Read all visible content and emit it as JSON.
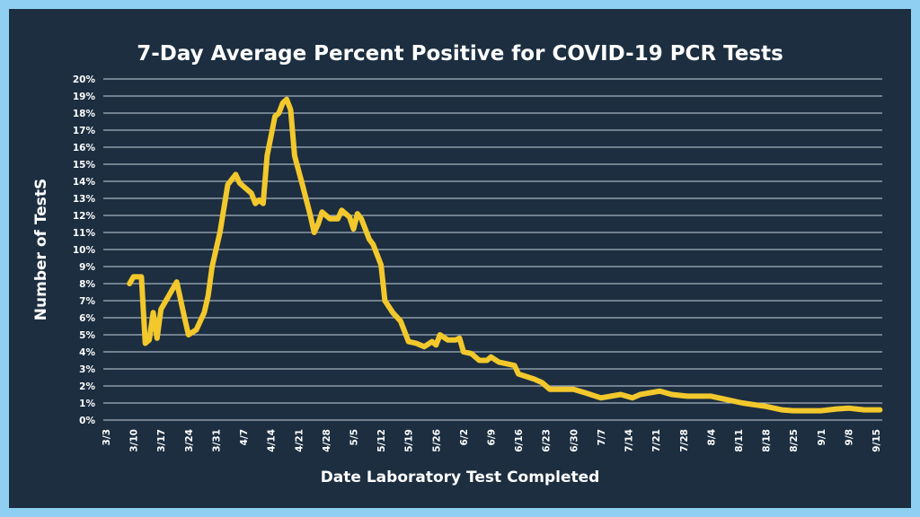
{
  "colors": {
    "frame": "#8fd0f2",
    "background": "#1c2e40",
    "line": "#f2c82c",
    "grid": "#c8d2dc"
  },
  "chart_data": {
    "type": "line",
    "title": "7-Day Average Percent Positive for COVID-19 PCR Tests",
    "xlabel": "Date Laboratory Test Completed",
    "ylabel": "Number of TestS",
    "ylim": [
      0,
      20
    ],
    "y_ticks": [
      "0%",
      "1%",
      "2%",
      "3%",
      "4%",
      "5%",
      "6%",
      "7%",
      "8%",
      "9%",
      "10%",
      "11%",
      "12%",
      "13%",
      "14%",
      "15%",
      "16%",
      "17%",
      "18%",
      "19%",
      "20%"
    ],
    "x_ticks": [
      "3/3",
      "3/10",
      "3/17",
      "3/24",
      "3/31",
      "4/7",
      "4/14",
      "4/21",
      "4/28",
      "5/5",
      "5/12",
      "5/19",
      "5/26",
      "6/2",
      "6/9",
      "6/16",
      "6/23",
      "6/30",
      "7/7",
      "7/14",
      "7/21",
      "7/28",
      "8/4",
      "8/11",
      "8/18",
      "8/25",
      "9/1",
      "9/8",
      "9/15"
    ],
    "grid": true,
    "legend": "none",
    "series": [
      {
        "x": [
          "3/9",
          "3/10",
          "3/12",
          "3/13",
          "3/14",
          "3/15",
          "3/16",
          "3/17",
          "3/19",
          "3/21",
          "3/23",
          "3/24",
          "3/26",
          "3/28",
          "3/29",
          "3/30",
          "4/1",
          "4/3",
          "4/5",
          "4/6",
          "4/8",
          "4/9",
          "4/10",
          "4/11",
          "4/12",
          "4/13",
          "4/15",
          "4/16",
          "4/17",
          "4/18",
          "4/19",
          "4/20",
          "4/22",
          "4/24",
          "4/25",
          "4/26",
          "4/27",
          "4/29",
          "5/1",
          "5/2",
          "5/4",
          "5/5",
          "5/6",
          "5/7",
          "5/9",
          "5/10",
          "5/12",
          "5/13",
          "5/15",
          "5/17",
          "5/19",
          "5/21",
          "5/23",
          "5/25",
          "5/26",
          "5/27",
          "5/29",
          "5/31",
          "6/1",
          "6/2",
          "6/4",
          "6/6",
          "6/8",
          "6/9",
          "6/11",
          "6/13",
          "6/15",
          "6/16",
          "6/20",
          "6/22",
          "6/24",
          "6/30",
          "7/3",
          "7/7",
          "7/12",
          "7/15",
          "7/17",
          "7/22",
          "7/25",
          "7/29",
          "8/4",
          "8/8",
          "8/12",
          "8/18",
          "8/22",
          "8/25",
          "9/1",
          "9/5",
          "9/8",
          "9/12",
          "9/16"
        ],
        "values": [
          8.0,
          8.4,
          8.4,
          4.5,
          4.7,
          6.3,
          4.8,
          6.5,
          7.3,
          8.1,
          6.0,
          5.0,
          5.3,
          6.3,
          7.3,
          9.0,
          11.0,
          13.8,
          14.4,
          13.9,
          13.5,
          13.3,
          12.7,
          12.9,
          12.7,
          15.5,
          17.8,
          18.0,
          18.6,
          18.8,
          18.2,
          15.5,
          13.8,
          12.0,
          11.0,
          11.5,
          12.2,
          11.8,
          11.8,
          12.3,
          11.9,
          11.2,
          12.1,
          11.8,
          10.6,
          10.3,
          9.1,
          7.0,
          6.3,
          5.8,
          4.6,
          4.5,
          4.3,
          4.6,
          4.4,
          5.0,
          4.7,
          4.7,
          4.8,
          4.0,
          3.9,
          3.5,
          3.5,
          3.7,
          3.4,
          3.3,
          3.2,
          2.7,
          2.4,
          2.2,
          1.8,
          1.8,
          1.6,
          1.3,
          1.5,
          1.3,
          1.5,
          1.7,
          1.5,
          1.4,
          1.4,
          1.2,
          1.0,
          0.8,
          0.6,
          0.55,
          0.55,
          0.65,
          0.7,
          0.6,
          0.6
        ]
      }
    ]
  }
}
